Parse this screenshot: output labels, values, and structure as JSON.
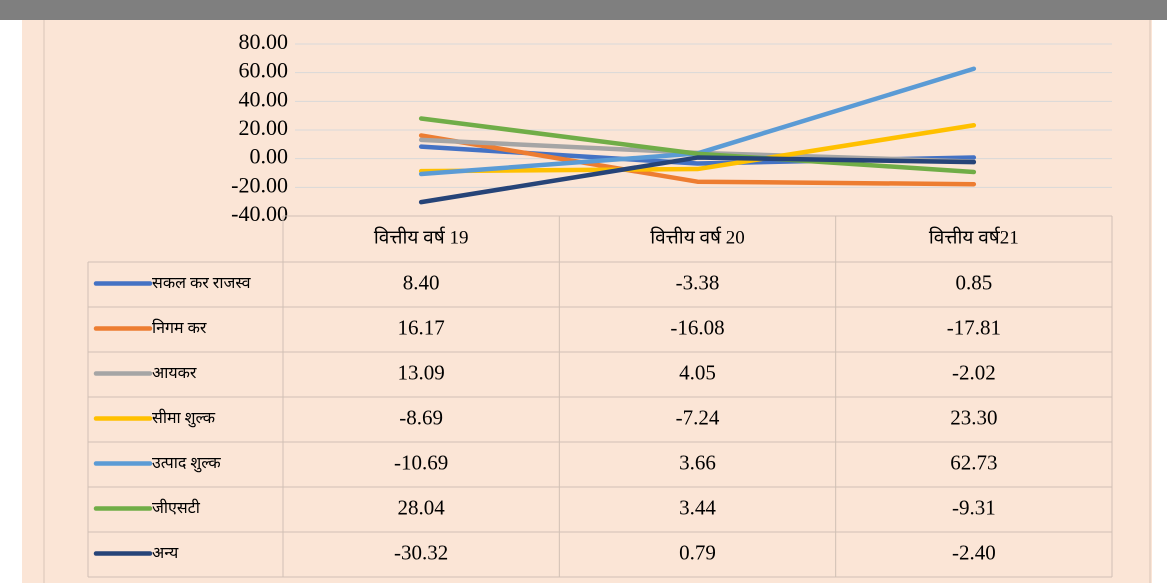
{
  "chart_data": {
    "type": "line",
    "categories": [
      "वित्तीय वर्ष 19",
      "वित्तीय वर्ष 20",
      "वित्तीय वर्ष21"
    ],
    "ylim": [
      -40,
      80
    ],
    "yticks": [
      {
        "value": 80,
        "label": "80.00"
      },
      {
        "value": 60,
        "label": "60.00"
      },
      {
        "value": 40,
        "label": "40.00"
      },
      {
        "value": 20,
        "label": "20.00"
      },
      {
        "value": 0,
        "label": "0.00"
      },
      {
        "value": -20,
        "label": "-20.00"
      },
      {
        "value": -40,
        "label": "-40.00"
      }
    ],
    "grid": true,
    "series": [
      {
        "name": "सकल कर राजस्व",
        "color": "#4472c4",
        "values": [
          8.4,
          -3.38,
          0.85
        ],
        "value_labels": [
          "8.40",
          "-3.38",
          "0.85"
        ]
      },
      {
        "name": "निगम कर",
        "color": "#ed7d31",
        "values": [
          16.17,
          -16.08,
          -17.81
        ],
        "value_labels": [
          "16.17",
          "-16.08",
          "-17.81"
        ]
      },
      {
        "name": "आयकर",
        "color": "#a5a5a5",
        "values": [
          13.09,
          4.05,
          -2.02
        ],
        "value_labels": [
          "13.09",
          "4.05",
          "-2.02"
        ]
      },
      {
        "name": "सीमा शुल्क",
        "color": "#ffc000",
        "values": [
          -8.69,
          -7.24,
          23.3
        ],
        "value_labels": [
          "-8.69",
          "-7.24",
          "23.30"
        ]
      },
      {
        "name": "उत्पाद शुल्क",
        "color": "#5b9bd5",
        "values": [
          -10.69,
          3.66,
          62.73
        ],
        "value_labels": [
          "-10.69",
          "3.66",
          "62.73"
        ]
      },
      {
        "name": "जीएसटी",
        "color": "#70ad47",
        "values": [
          28.04,
          3.44,
          -9.31
        ],
        "value_labels": [
          "28.04",
          "3.44",
          "-9.31"
        ]
      },
      {
        "name": "अन्य",
        "color": "#264478",
        "values": [
          -30.32,
          0.79,
          -2.4
        ],
        "value_labels": [
          "-30.32",
          "0.79",
          "-2.40"
        ]
      }
    ]
  }
}
